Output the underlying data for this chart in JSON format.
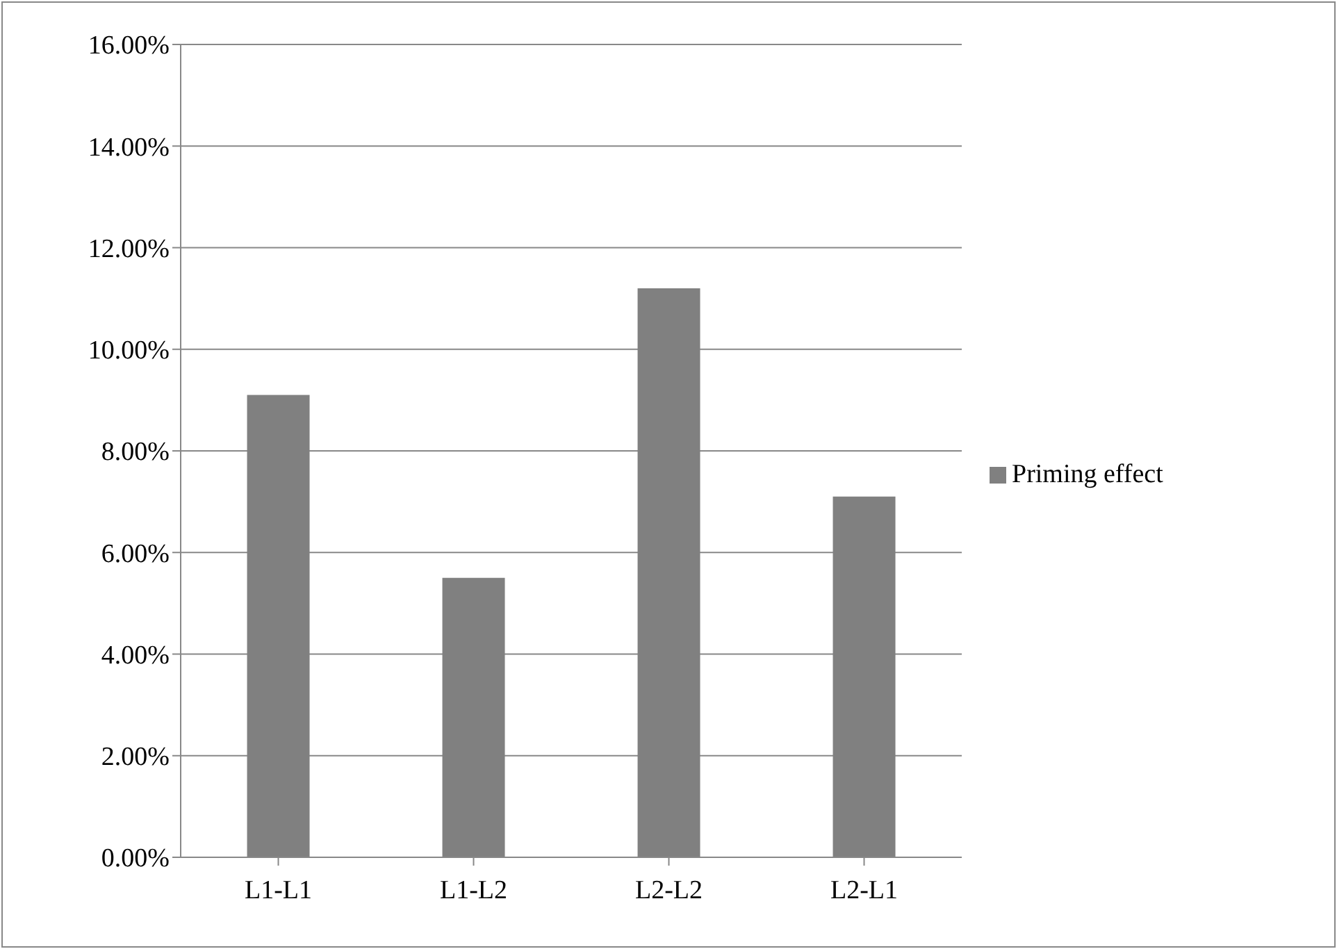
{
  "chart_data": {
    "type": "bar",
    "categories": [
      "L1-L1",
      "L1-L2",
      "L2-L2",
      "L2-L1"
    ],
    "series": [
      {
        "name": "Priming effect",
        "color": "#808080",
        "values": [
          9.1,
          5.5,
          11.2,
          7.1
        ]
      }
    ],
    "ylim": [
      0,
      16
    ],
    "yticks": [
      {
        "value": 0,
        "label": "0.00%"
      },
      {
        "value": 2,
        "label": "2.00%"
      },
      {
        "value": 4,
        "label": "4.00%"
      },
      {
        "value": 6,
        "label": "6.00%"
      },
      {
        "value": 8,
        "label": "8.00%"
      },
      {
        "value": 10,
        "label": "10.00%"
      },
      {
        "value": 12,
        "label": "12.00%"
      },
      {
        "value": 14,
        "label": "14.00%"
      },
      {
        "value": 16,
        "label": "16.00%"
      }
    ],
    "grid": "y",
    "legend": "right"
  }
}
